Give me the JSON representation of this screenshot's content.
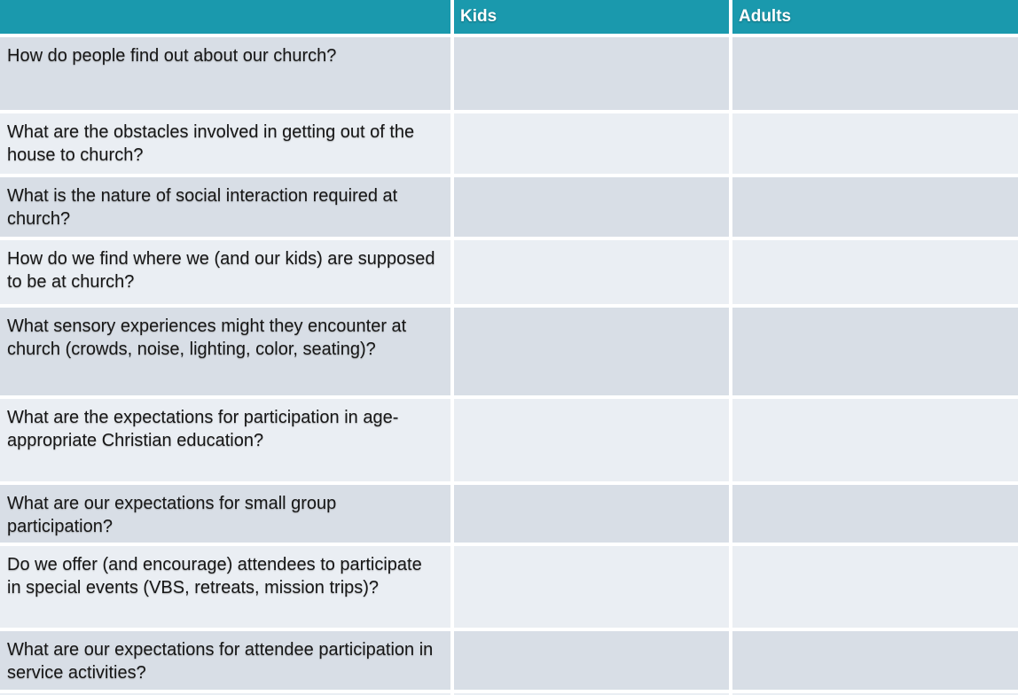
{
  "colors": {
    "header_bg": "#1a99ad",
    "header_text": "#ffffff",
    "row_dark": "#d8dee6",
    "row_light": "#eaeef3",
    "body_text": "#161616",
    "grid_gap": "#ffffff"
  },
  "table": {
    "columns": [
      {
        "label": ""
      },
      {
        "label": "Kids"
      },
      {
        "label": "Adults"
      }
    ],
    "rows": [
      {
        "question": "How do people find out about our church?",
        "kids": "",
        "adults": ""
      },
      {
        "question": "What are the obstacles involved in getting out of the house to church?",
        "kids": "",
        "adults": ""
      },
      {
        "question": "What is the nature of social interaction required at church?",
        "kids": "",
        "adults": ""
      },
      {
        "question": "How do we find where we (and our kids) are supposed to be at church?",
        "kids": "",
        "adults": ""
      },
      {
        "question": "What sensory experiences might they encounter at church (crowds, noise, lighting, color, seating)?",
        "kids": "",
        "adults": ""
      },
      {
        "question": "What are the expectations for participation in age-appropriate Christian education?",
        "kids": "",
        "adults": ""
      },
      {
        "question": "What are our expectations for small group participation?",
        "kids": "",
        "adults": ""
      },
      {
        "question": "Do we offer (and encourage) attendees to participate in special events (VBS, retreats, mission trips)?",
        "kids": "",
        "adults": ""
      },
      {
        "question": "What are our expectations for attendee participation in service activities?",
        "kids": "",
        "adults": ""
      }
    ]
  }
}
